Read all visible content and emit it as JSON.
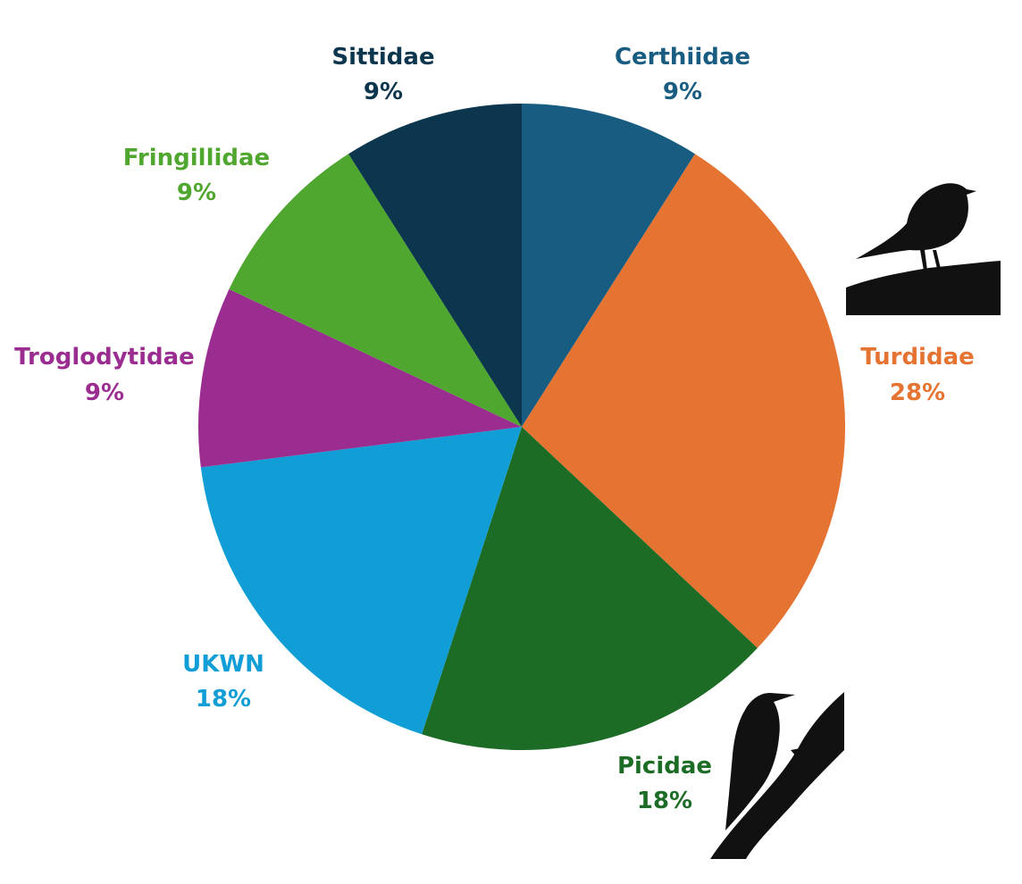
{
  "chart_data": {
    "type": "pie",
    "title": "",
    "start_angle_deg": 0,
    "direction": "clockwise",
    "slices": [
      {
        "label": "Certhiidae",
        "value": 9,
        "value_label": "9%",
        "color": "#185d81"
      },
      {
        "label": "Turdidae",
        "value": 28,
        "value_label": "28%",
        "color": "#e57332"
      },
      {
        "label": "Picidae",
        "value": 18,
        "value_label": "18%",
        "color": "#1c6c26"
      },
      {
        "label": "UKWN",
        "value": 18,
        "value_label": "18%",
        "color": "#119ed6"
      },
      {
        "label": "Troglodytidae",
        "value": 9,
        "value_label": "9%",
        "color": "#9b2d91"
      },
      {
        "label": "Fringillidae",
        "value": 9,
        "value_label": "9%",
        "color": "#50a72f"
      },
      {
        "label": "Sittidae",
        "value": 9,
        "value_label": "9%",
        "color": "#0b364d"
      }
    ],
    "legend": "none"
  },
  "icons": {
    "thrush": "thrush-silhouette-icon",
    "woodpecker": "woodpecker-silhouette-icon",
    "silhouette_color": "#111111"
  }
}
